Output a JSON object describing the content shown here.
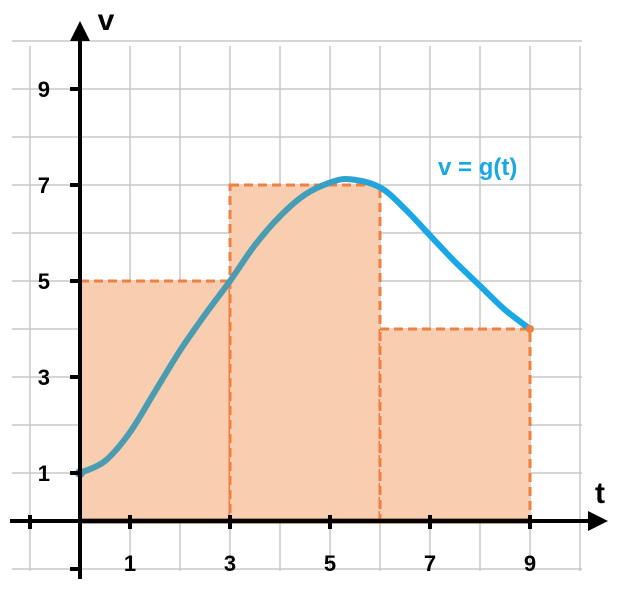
{
  "chart_data": {
    "type": "line",
    "title": "",
    "xlabel": "t",
    "ylabel": "v",
    "xlim": [
      -1,
      10
    ],
    "ylim": [
      -1,
      10
    ],
    "grid": true,
    "x_ticks": [
      1,
      3,
      5,
      7,
      9
    ],
    "y_ticks": [
      1,
      3,
      5,
      7,
      9
    ],
    "curve_label": "v = g(t)",
    "series": [
      {
        "name": "v = g(t)",
        "x": [
          0,
          0.5,
          1,
          1.5,
          2,
          2.5,
          3,
          3.5,
          4,
          4.5,
          5,
          5.4,
          6,
          6.5,
          7,
          7.5,
          8,
          8.5,
          9
        ],
        "y": [
          1,
          1.25,
          1.85,
          2.7,
          3.55,
          4.3,
          5.0,
          5.75,
          6.35,
          6.8,
          7.05,
          7.12,
          6.95,
          6.5,
          5.95,
          5.4,
          4.9,
          4.4,
          4.0
        ]
      }
    ],
    "rectangles": [
      {
        "x_start": 0,
        "x_end": 3,
        "height": 5
      },
      {
        "x_start": 3,
        "x_end": 6,
        "height": 7
      },
      {
        "x_start": 6,
        "x_end": 9,
        "height": 4
      }
    ],
    "colors": {
      "curve_left": "#4a9cb0",
      "curve_right": "#1aa7e6",
      "rect_fill": "#f8cdb0",
      "rect_stroke": "#f08040",
      "grid": "#c8c8c8",
      "axis": "#000000",
      "baseline": "#7a3a10"
    }
  }
}
